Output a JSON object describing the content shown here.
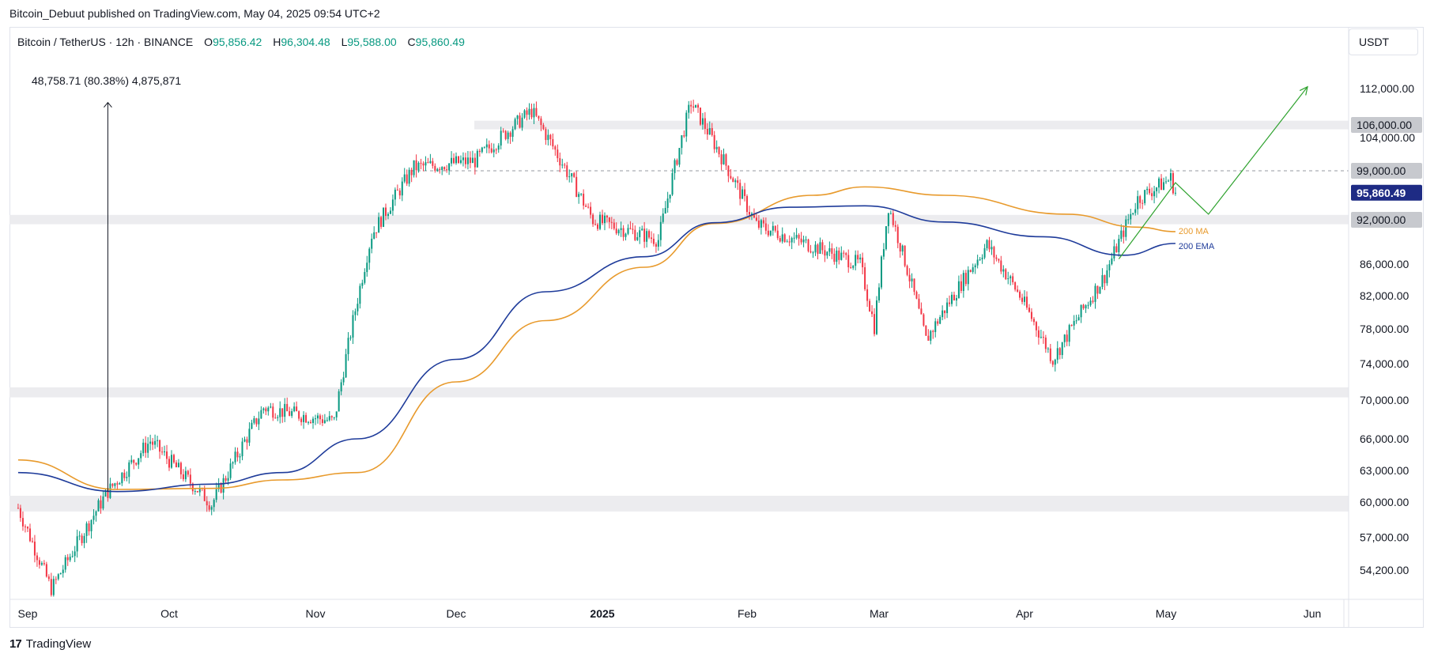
{
  "header": {
    "published_line": "Bitcoin_Debuut published on TradingView.com, May 04, 2025 09:54 UTC+2",
    "symbol": "Bitcoin / TetherUS · 12h · BINANCE",
    "open_label": "O",
    "open_value": "95,856.42",
    "high_label": "H",
    "high_value": "96,304.48",
    "low_label": "L",
    "low_value": "95,588.00",
    "close_label": "C",
    "close_value": "95,860.49",
    "currency": "USDT"
  },
  "footer": {
    "brand": "TradingView"
  },
  "chart_data": {
    "type": "candlestick",
    "price_axis": {
      "ticks": [
        54200,
        57000,
        60000,
        63000,
        66000,
        70000,
        74000,
        78000,
        82000,
        86000,
        92000,
        99000,
        104000,
        106000,
        112000
      ],
      "tick_labels": [
        "54,200.00",
        "57,000.00",
        "60,000.00",
        "63,000.00",
        "66,000.00",
        "70,000.00",
        "74,000.00",
        "78,000.00",
        "82,000.00",
        "86,000.00",
        "92,000.00",
        "99,000.00",
        "104,000.00",
        "106,000.00",
        "112,000.00"
      ],
      "highlighted_levels": [
        {
          "value": 106000,
          "label": "106,000.00",
          "color": "#c7c9ce"
        },
        {
          "value": 99000,
          "label": "99,000.00",
          "color": "#c7c9ce"
        },
        {
          "value": 92000,
          "label": "92,000.00",
          "color": "#c7c9ce"
        }
      ],
      "last_price": {
        "value": 95860.49,
        "label": "95,860.49",
        "color": "#1e2b84"
      }
    },
    "time_axis": {
      "labels": [
        "Sep",
        "Oct",
        "Nov",
        "Dec",
        "2025",
        "Feb",
        "Mar",
        "Apr",
        "May",
        "Jun"
      ],
      "bold": [
        "2025"
      ]
    },
    "zones": [
      {
        "from": 105300,
        "to": 106700
      },
      {
        "from": 91400,
        "to": 92700
      },
      {
        "from": 70300,
        "to": 71400
      },
      {
        "from": 59200,
        "to": 60600
      }
    ],
    "dashed_level": 99000,
    "measure": {
      "label": "48,758.71 (80.38%) 4,875,871",
      "from": 61000,
      "to": 109700,
      "date": "Sep 18"
    },
    "key_prices": [
      {
        "date": "Aug 30",
        "price": 59500
      },
      {
        "date": "Sep 06",
        "price": 52600
      },
      {
        "date": "Sep 18",
        "price": 61000
      },
      {
        "date": "Sep 27",
        "price": 65800
      },
      {
        "date": "Oct 10",
        "price": 59800
      },
      {
        "date": "Oct 21",
        "price": 69200
      },
      {
        "date": "Nov 05",
        "price": 67800
      },
      {
        "date": "Nov 13",
        "price": 90000
      },
      {
        "date": "Nov 22",
        "price": 99500
      },
      {
        "date": "Dec 05",
        "price": 100500
      },
      {
        "date": "Dec 17",
        "price": 108300
      },
      {
        "date": "Dec 30",
        "price": 92000
      },
      {
        "date": "Jan 13",
        "price": 89300
      },
      {
        "date": "Jan 20",
        "price": 109700
      },
      {
        "date": "Feb 03",
        "price": 91300
      },
      {
        "date": "Feb 25",
        "price": 86000
      },
      {
        "date": "Feb 28",
        "price": 78300
      },
      {
        "date": "Mar 03",
        "price": 94000
      },
      {
        "date": "Mar 11",
        "price": 76700
      },
      {
        "date": "Mar 24",
        "price": 88600
      },
      {
        "date": "Mar 31",
        "price": 82000
      },
      {
        "date": "Apr 07",
        "price": 74500
      },
      {
        "date": "Apr 18",
        "price": 84500
      },
      {
        "date": "Apr 25",
        "price": 95000
      },
      {
        "date": "May 02",
        "price": 97900
      },
      {
        "date": "May 03",
        "price": 95860
      }
    ],
    "indicators": [
      {
        "name": "200 MA",
        "color": "#e89a2c",
        "points": [
          {
            "date": "Aug 30",
            "price": 64000
          },
          {
            "date": "Sep 20",
            "price": 61200
          },
          {
            "date": "Oct 10",
            "price": 61300
          },
          {
            "date": "Oct 25",
            "price": 62100
          },
          {
            "date": "Nov 10",
            "price": 62800
          },
          {
            "date": "Dec 01",
            "price": 72000
          },
          {
            "date": "Dec 20",
            "price": 79000
          },
          {
            "date": "Jan 10",
            "price": 85600
          },
          {
            "date": "Jan 25",
            "price": 91500
          },
          {
            "date": "Feb 15",
            "price": 95500
          },
          {
            "date": "Feb 26",
            "price": 96700
          },
          {
            "date": "Mar 15",
            "price": 95500
          },
          {
            "date": "Apr 10",
            "price": 92800
          },
          {
            "date": "Apr 25",
            "price": 91000
          },
          {
            "date": "May 03",
            "price": 90400
          }
        ]
      },
      {
        "name": "200 EMA",
        "color": "#1e3b9a",
        "points": [
          {
            "date": "Aug 30",
            "price": 62800
          },
          {
            "date": "Sep 20",
            "price": 61000
          },
          {
            "date": "Oct 10",
            "price": 61700
          },
          {
            "date": "Oct 25",
            "price": 62800
          },
          {
            "date": "Nov 10",
            "price": 66000
          },
          {
            "date": "Dec 01",
            "price": 74500
          },
          {
            "date": "Dec 20",
            "price": 82500
          },
          {
            "date": "Jan 10",
            "price": 87000
          },
          {
            "date": "Jan 25",
            "price": 91600
          },
          {
            "date": "Feb 10",
            "price": 93800
          },
          {
            "date": "Feb 26",
            "price": 94000
          },
          {
            "date": "Mar 15",
            "price": 91700
          },
          {
            "date": "Apr 05",
            "price": 89700
          },
          {
            "date": "Apr 22",
            "price": 87200
          },
          {
            "date": "May 03",
            "price": 88800
          }
        ]
      }
    ],
    "projection": {
      "color": "#2ea22e",
      "points": [
        {
          "date": "Apr 21",
          "price": 86700
        },
        {
          "date": "May 03",
          "price": 97300
        },
        {
          "date": "May 10",
          "price": 92800
        },
        {
          "date": "May 31",
          "price": 112300
        }
      ]
    },
    "candle_colors": {
      "up": "#089981",
      "down": "#f23645"
    }
  }
}
